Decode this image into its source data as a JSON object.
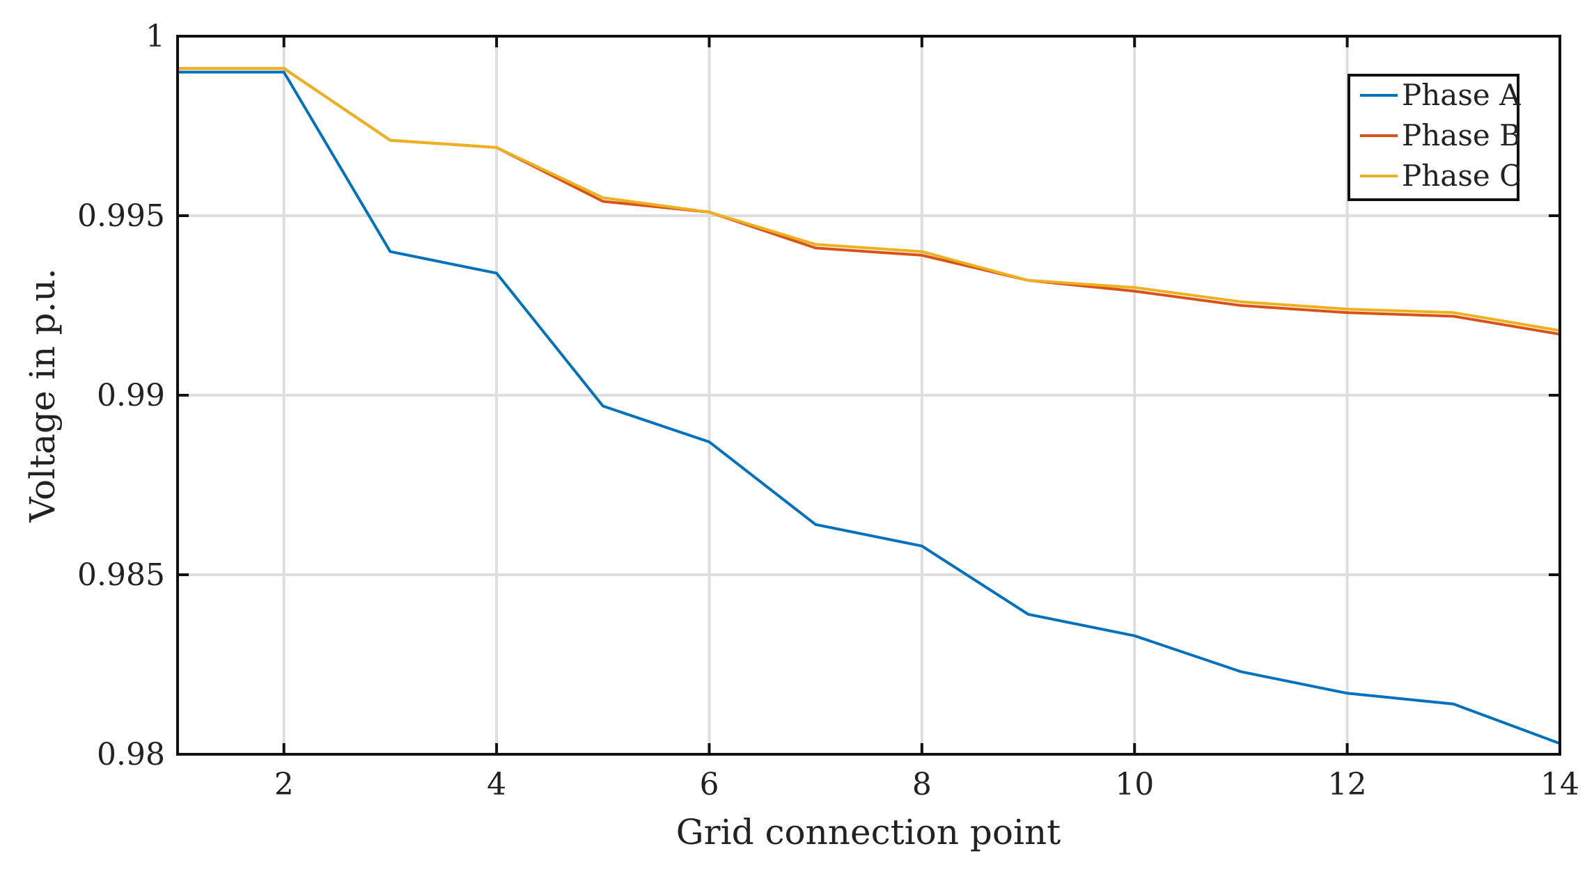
{
  "chart_data": {
    "type": "line",
    "title": "",
    "xlabel": "Grid connection point",
    "ylabel": "Voltage in p.u.",
    "xlim": [
      1,
      14
    ],
    "ylim": [
      0.98,
      1.0
    ],
    "x_ticks": [
      2,
      4,
      6,
      8,
      10,
      12,
      14
    ],
    "x_tick_labels": [
      "2",
      "4",
      "6",
      "8",
      "10",
      "12",
      "14"
    ],
    "y_ticks": [
      0.98,
      0.985,
      0.99,
      0.995,
      1.0
    ],
    "y_tick_labels": [
      "0.98",
      "0.985",
      "0.99",
      "0.995",
      "1"
    ],
    "grid": true,
    "legend_position": "top-right",
    "x": [
      1,
      2,
      3,
      4,
      5,
      6,
      7,
      8,
      9,
      10,
      11,
      12,
      13,
      14
    ],
    "series": [
      {
        "name": "Phase A",
        "color": "#0072BD",
        "values": [
          0.999,
          0.999,
          0.994,
          0.9934,
          0.9897,
          0.9887,
          0.9864,
          0.9858,
          0.9839,
          0.9833,
          0.9823,
          0.9817,
          0.9814,
          0.9803
        ]
      },
      {
        "name": "Phase B",
        "color": "#D95319",
        "values": [
          0.9991,
          0.9991,
          0.9971,
          0.9969,
          0.9954,
          0.9951,
          0.9941,
          0.9939,
          0.9932,
          0.9929,
          0.9925,
          0.9923,
          0.9922,
          0.9917
        ]
      },
      {
        "name": "Phase C",
        "color": "#EDB120",
        "values": [
          0.9991,
          0.9991,
          0.9971,
          0.9969,
          0.9955,
          0.9951,
          0.9942,
          0.994,
          0.9932,
          0.993,
          0.9926,
          0.9924,
          0.9923,
          0.9918
        ]
      }
    ]
  }
}
